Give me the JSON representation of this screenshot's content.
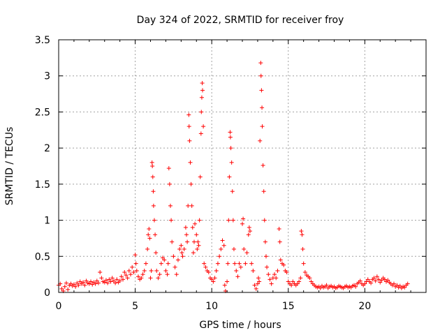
{
  "chart_data": {
    "type": "scatter",
    "title": "Day 324 of 2022, SRMTID for receiver froy",
    "xlabel": "GPS time / hours",
    "ylabel": "SRMTID / TECUs",
    "xlim": [
      0,
      24
    ],
    "ylim": [
      0,
      3.5
    ],
    "xticks": [
      0,
      5,
      10,
      15,
      20
    ],
    "xtick_labels": [
      "0",
      "5",
      "10",
      "15",
      "20"
    ],
    "yticks": [
      0,
      0.5,
      1,
      1.5,
      2,
      2.5,
      3,
      3.5
    ],
    "ytick_labels": [
      "0",
      "0.5",
      "1",
      "1.5",
      "2",
      "2.5",
      "3",
      "3.5"
    ],
    "grid": true,
    "marker": "+",
    "color": "#ff0000",
    "series": [
      {
        "name": "SRMTID",
        "points": [
          [
            0.0,
            0.1
          ],
          [
            0.1,
            0.12
          ],
          [
            0.2,
            0.05
          ],
          [
            0.3,
            0.02
          ],
          [
            0.4,
            0.08
          ],
          [
            0.5,
            0.13
          ],
          [
            0.6,
            0.04
          ],
          [
            0.7,
            0.1
          ],
          [
            0.8,
            0.12
          ],
          [
            0.9,
            0.09
          ],
          [
            1.0,
            0.11
          ],
          [
            1.1,
            0.08
          ],
          [
            1.2,
            0.13
          ],
          [
            1.3,
            0.1
          ],
          [
            1.4,
            0.15
          ],
          [
            1.5,
            0.12
          ],
          [
            1.6,
            0.14
          ],
          [
            1.7,
            0.1
          ],
          [
            1.8,
            0.16
          ],
          [
            1.9,
            0.13
          ],
          [
            2.0,
            0.12
          ],
          [
            2.1,
            0.15
          ],
          [
            2.2,
            0.11
          ],
          [
            2.3,
            0.14
          ],
          [
            2.4,
            0.12
          ],
          [
            2.5,
            0.16
          ],
          [
            2.6,
            0.13
          ],
          [
            2.7,
            0.28
          ],
          [
            2.8,
            0.2
          ],
          [
            2.9,
            0.15
          ],
          [
            3.0,
            0.14
          ],
          [
            3.1,
            0.17
          ],
          [
            3.2,
            0.13
          ],
          [
            3.3,
            0.18
          ],
          [
            3.4,
            0.15
          ],
          [
            3.5,
            0.2
          ],
          [
            3.6,
            0.16
          ],
          [
            3.7,
            0.13
          ],
          [
            3.8,
            0.18
          ],
          [
            3.9,
            0.14
          ],
          [
            4.0,
            0.16
          ],
          [
            4.1,
            0.22
          ],
          [
            4.2,
            0.18
          ],
          [
            4.3,
            0.28
          ],
          [
            4.4,
            0.24
          ],
          [
            4.5,
            0.2
          ],
          [
            4.6,
            0.3
          ],
          [
            4.7,
            0.25
          ],
          [
            4.8,
            0.35
          ],
          [
            4.9,
            0.28
          ],
          [
            5.0,
            0.52
          ],
          [
            5.05,
            0.4
          ],
          [
            5.1,
            0.3
          ],
          [
            5.2,
            0.22
          ],
          [
            5.3,
            0.18
          ],
          [
            5.4,
            0.2
          ],
          [
            5.5,
            0.25
          ],
          [
            5.6,
            0.3
          ],
          [
            5.7,
            0.4
          ],
          [
            5.8,
            0.6
          ],
          [
            5.85,
            0.8
          ],
          [
            5.9,
            0.88
          ],
          [
            5.95,
            0.75
          ],
          [
            6.0,
            0.2
          ],
          [
            6.05,
            0.3
          ],
          [
            6.1,
            1.8
          ],
          [
            6.12,
            1.75
          ],
          [
            6.15,
            1.6
          ],
          [
            6.18,
            1.4
          ],
          [
            6.2,
            1.2
          ],
          [
            6.25,
            1.0
          ],
          [
            6.3,
            0.8
          ],
          [
            6.35,
            0.55
          ],
          [
            6.4,
            0.3
          ],
          [
            6.5,
            0.2
          ],
          [
            6.6,
            0.25
          ],
          [
            6.7,
            0.4
          ],
          [
            6.8,
            0.48
          ],
          [
            6.9,
            0.45
          ],
          [
            7.0,
            0.3
          ],
          [
            7.1,
            0.25
          ],
          [
            7.15,
            0.4
          ],
          [
            7.2,
            1.72
          ],
          [
            7.25,
            1.5
          ],
          [
            7.3,
            1.2
          ],
          [
            7.35,
            1.0
          ],
          [
            7.4,
            0.7
          ],
          [
            7.5,
            0.5
          ],
          [
            7.6,
            0.35
          ],
          [
            7.7,
            0.25
          ],
          [
            7.8,
            0.45
          ],
          [
            7.9,
            0.6
          ],
          [
            8.0,
            0.65
          ],
          [
            8.05,
            0.55
          ],
          [
            8.1,
            0.5
          ],
          [
            8.2,
            0.6
          ],
          [
            8.3,
            0.9
          ],
          [
            8.35,
            0.8
          ],
          [
            8.4,
            0.7
          ],
          [
            8.45,
            1.2
          ],
          [
            8.5,
            2.46
          ],
          [
            8.52,
            2.3
          ],
          [
            8.55,
            2.1
          ],
          [
            8.6,
            1.8
          ],
          [
            8.65,
            1.5
          ],
          [
            8.7,
            1.2
          ],
          [
            8.75,
            0.9
          ],
          [
            8.8,
            0.55
          ],
          [
            8.85,
            0.7
          ],
          [
            8.9,
            0.95
          ],
          [
            9.0,
            0.8
          ],
          [
            9.05,
            0.6
          ],
          [
            9.1,
            0.7
          ],
          [
            9.15,
            0.65
          ],
          [
            9.2,
            1.0
          ],
          [
            9.25,
            1.6
          ],
          [
            9.3,
            2.2
          ],
          [
            9.32,
            2.5
          ],
          [
            9.35,
            2.7
          ],
          [
            9.38,
            2.9
          ],
          [
            9.4,
            2.8
          ],
          [
            9.45,
            2.3
          ],
          [
            9.5,
            0.4
          ],
          [
            9.6,
            0.35
          ],
          [
            9.7,
            0.3
          ],
          [
            9.8,
            0.28
          ],
          [
            9.9,
            0.2
          ],
          [
            10.0,
            0.18
          ],
          [
            10.1,
            0.15
          ],
          [
            10.2,
            0.2
          ],
          [
            10.3,
            0.3
          ],
          [
            10.4,
            0.4
          ],
          [
            10.5,
            0.5
          ],
          [
            10.6,
            0.6
          ],
          [
            10.7,
            0.72
          ],
          [
            10.8,
            0.65
          ],
          [
            10.85,
            0.1
          ],
          [
            10.9,
            0.02
          ],
          [
            11.0,
            0.15
          ],
          [
            11.05,
            0.4
          ],
          [
            11.1,
            1.0
          ],
          [
            11.15,
            1.6
          ],
          [
            11.2,
            2.22
          ],
          [
            11.22,
            2.15
          ],
          [
            11.25,
            2.0
          ],
          [
            11.3,
            1.8
          ],
          [
            11.35,
            1.4
          ],
          [
            11.4,
            1.0
          ],
          [
            11.45,
            0.6
          ],
          [
            11.5,
            0.4
          ],
          [
            11.6,
            0.3
          ],
          [
            11.7,
            0.22
          ],
          [
            11.8,
            0.4
          ],
          [
            11.9,
            0.35
          ],
          [
            12.0,
            0.95
          ],
          [
            12.05,
            1.02
          ],
          [
            12.1,
            0.6
          ],
          [
            12.2,
            0.4
          ],
          [
            12.3,
            0.55
          ],
          [
            12.4,
            0.8
          ],
          [
            12.45,
            0.9
          ],
          [
            12.5,
            0.85
          ],
          [
            12.6,
            0.4
          ],
          [
            12.7,
            0.3
          ],
          [
            12.8,
            0.1
          ],
          [
            12.9,
            0.05
          ],
          [
            13.0,
            0.12
          ],
          [
            13.05,
            0.2
          ],
          [
            13.1,
            0.15
          ],
          [
            13.15,
            2.1
          ],
          [
            13.2,
            3.18
          ],
          [
            13.22,
            3.0
          ],
          [
            13.25,
            2.8
          ],
          [
            13.28,
            2.56
          ],
          [
            13.3,
            2.3
          ],
          [
            13.35,
            1.76
          ],
          [
            13.4,
            1.4
          ],
          [
            13.45,
            1.0
          ],
          [
            13.5,
            0.7
          ],
          [
            13.55,
            0.5
          ],
          [
            13.6,
            0.35
          ],
          [
            13.7,
            0.25
          ],
          [
            13.8,
            0.18
          ],
          [
            13.9,
            0.12
          ],
          [
            14.0,
            0.2
          ],
          [
            14.1,
            0.25
          ],
          [
            14.2,
            0.2
          ],
          [
            14.3,
            0.3
          ],
          [
            14.4,
            0.88
          ],
          [
            14.45,
            0.7
          ],
          [
            14.5,
            0.45
          ],
          [
            14.6,
            0.4
          ],
          [
            14.7,
            0.38
          ],
          [
            14.8,
            0.3
          ],
          [
            14.9,
            0.28
          ],
          [
            15.0,
            0.15
          ],
          [
            15.1,
            0.12
          ],
          [
            15.2,
            0.1
          ],
          [
            15.3,
            0.15
          ],
          [
            15.4,
            0.12
          ],
          [
            15.5,
            0.1
          ],
          [
            15.6,
            0.12
          ],
          [
            15.7,
            0.15
          ],
          [
            15.8,
            0.2
          ],
          [
            15.85,
            0.85
          ],
          [
            15.9,
            0.8
          ],
          [
            15.95,
            0.6
          ],
          [
            16.0,
            0.4
          ],
          [
            16.1,
            0.28
          ],
          [
            16.2,
            0.24
          ],
          [
            16.3,
            0.22
          ],
          [
            16.4,
            0.2
          ],
          [
            16.5,
            0.15
          ],
          [
            16.6,
            0.12
          ],
          [
            16.7,
            0.1
          ],
          [
            16.8,
            0.08
          ],
          [
            16.9,
            0.07
          ],
          [
            17.0,
            0.08
          ],
          [
            17.1,
            0.06
          ],
          [
            17.2,
            0.09
          ],
          [
            17.3,
            0.07
          ],
          [
            17.4,
            0.08
          ],
          [
            17.5,
            0.1
          ],
          [
            17.6,
            0.06
          ],
          [
            17.7,
            0.08
          ],
          [
            17.8,
            0.09
          ],
          [
            17.9,
            0.07
          ],
          [
            18.0,
            0.08
          ],
          [
            18.1,
            0.06
          ],
          [
            18.2,
            0.07
          ],
          [
            18.3,
            0.09
          ],
          [
            18.4,
            0.08
          ],
          [
            18.5,
            0.07
          ],
          [
            18.6,
            0.06
          ],
          [
            18.7,
            0.08
          ],
          [
            18.8,
            0.09
          ],
          [
            18.9,
            0.07
          ],
          [
            19.0,
            0.08
          ],
          [
            19.1,
            0.07
          ],
          [
            19.2,
            0.09
          ],
          [
            19.3,
            0.1
          ],
          [
            19.4,
            0.08
          ],
          [
            19.5,
            0.12
          ],
          [
            19.6,
            0.14
          ],
          [
            19.7,
            0.16
          ],
          [
            19.8,
            0.12
          ],
          [
            19.9,
            0.1
          ],
          [
            20.0,
            0.12
          ],
          [
            20.1,
            0.15
          ],
          [
            20.2,
            0.18
          ],
          [
            20.3,
            0.15
          ],
          [
            20.4,
            0.13
          ],
          [
            20.5,
            0.18
          ],
          [
            20.6,
            0.2
          ],
          [
            20.7,
            0.16
          ],
          [
            20.8,
            0.22
          ],
          [
            20.9,
            0.18
          ],
          [
            21.0,
            0.14
          ],
          [
            21.1,
            0.17
          ],
          [
            21.2,
            0.2
          ],
          [
            21.3,
            0.18
          ],
          [
            21.4,
            0.15
          ],
          [
            21.5,
            0.17
          ],
          [
            21.6,
            0.14
          ],
          [
            21.7,
            0.12
          ],
          [
            21.8,
            0.1
          ],
          [
            21.9,
            0.12
          ],
          [
            22.0,
            0.08
          ],
          [
            22.1,
            0.1
          ],
          [
            22.2,
            0.07
          ],
          [
            22.3,
            0.09
          ],
          [
            22.4,
            0.06
          ],
          [
            22.5,
            0.08
          ],
          [
            22.6,
            0.07
          ],
          [
            22.7,
            0.1
          ],
          [
            22.8,
            0.12
          ]
        ]
      }
    ]
  }
}
